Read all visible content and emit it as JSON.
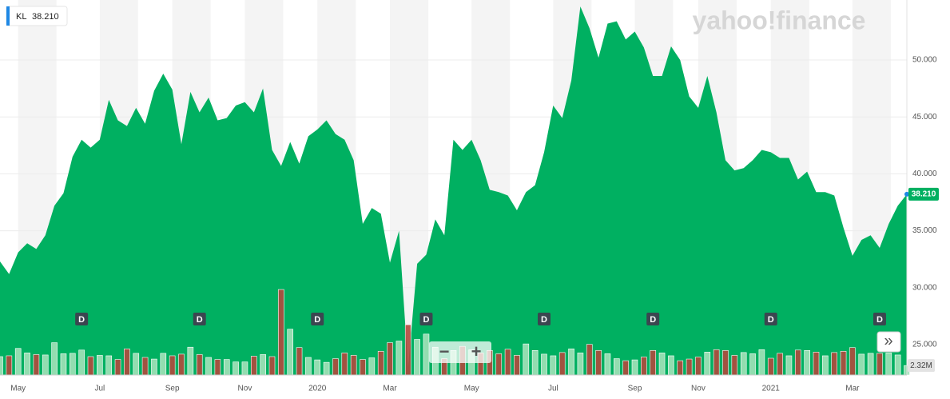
{
  "chart_data": {
    "type": "area",
    "symbol": "KL",
    "categories": [
      null,
      null,
      "May",
      null,
      null,
      null,
      null,
      null,
      null,
      null,
      null,
      "Jul",
      null,
      null,
      null,
      null,
      null,
      null,
      null,
      "Sep",
      null,
      null,
      null,
      null,
      null,
      null,
      null,
      "Nov",
      null,
      null,
      null,
      null,
      null,
      null,
      null,
      "2020",
      null,
      null,
      null,
      null,
      null,
      null,
      null,
      "Mar",
      null,
      null,
      null,
      null,
      null,
      null,
      null,
      null,
      "May",
      null,
      null,
      null,
      null,
      null,
      null,
      null,
      null,
      "Jul",
      null,
      null,
      null,
      null,
      null,
      null,
      null,
      null,
      "Sep",
      null,
      null,
      null,
      null,
      null,
      null,
      "Nov",
      null,
      null,
      null,
      null,
      null,
      null,
      null,
      "2021",
      null,
      null,
      null,
      null,
      null,
      null,
      null,
      null,
      "Mar",
      null,
      null,
      null,
      null,
      null,
      null
    ],
    "series": [
      {
        "name": "KL",
        "color": "#00b061",
        "values": [
          32.3,
          31.2,
          33.1,
          33.9,
          33.4,
          34.6,
          37.2,
          38.3,
          41.5,
          43.0,
          42.3,
          43.0,
          46.5,
          44.7,
          44.2,
          45.8,
          44.4,
          47.3,
          48.8,
          47.4,
          42.6,
          47.2,
          45.4,
          46.7,
          44.7,
          44.9,
          46.0,
          46.3,
          45.4,
          47.5,
          42.1,
          40.7,
          42.8,
          40.9,
          43.3,
          43.9,
          44.7,
          43.5,
          43.0,
          41.2,
          35.6,
          37.0,
          36.5,
          32.2,
          35.0,
          23.0,
          32.1,
          32.9,
          36.0,
          34.6,
          43.0,
          42.1,
          43.0,
          41.2,
          38.6,
          38.4,
          38.1,
          36.8,
          38.4,
          39.0,
          41.9,
          46.0,
          44.9,
          48.2,
          54.7,
          52.8,
          50.2,
          53.2,
          53.4,
          51.8,
          52.5,
          51.1,
          48.6,
          48.6,
          51.2,
          50.0,
          46.8,
          45.8,
          48.6,
          45.4,
          41.2,
          40.3,
          40.5,
          41.2,
          42.1,
          41.9,
          41.4,
          41.4,
          39.5,
          40.2,
          38.4,
          38.4,
          38.1,
          35.3,
          32.8,
          34.2,
          34.6,
          33.5,
          35.6,
          37.2,
          38.21
        ],
        "value_labels": [
          null,
          null,
          null,
          null,
          null,
          null,
          null,
          null,
          null,
          null,
          null,
          null,
          null,
          null,
          null,
          null,
          null,
          null,
          null,
          null,
          null,
          null,
          null,
          null,
          null,
          null,
          null,
          null,
          null,
          null,
          null,
          null,
          null,
          null,
          null,
          null,
          null,
          null,
          null,
          null,
          null,
          null,
          null,
          null,
          null,
          null,
          null,
          null,
          null,
          null,
          null,
          null,
          null,
          null,
          null,
          null,
          null,
          null,
          null,
          null,
          null,
          null,
          null,
          null,
          null,
          null,
          null,
          null,
          null,
          null,
          null,
          null,
          null,
          null,
          null,
          null,
          null,
          null,
          null,
          null,
          null,
          null,
          null,
          null,
          null,
          null,
          null,
          null,
          null,
          null,
          null,
          null,
          null,
          null,
          null,
          null,
          null,
          null,
          null,
          null,
          "38.210"
        ]
      }
    ],
    "volume": {
      "up_color": "#a3e2b9",
      "down_color": "#b2493d",
      "vlim": [
        0,
        21.5
      ],
      "values": [
        4.5,
        4.7,
        6.5,
        5.4,
        5.0,
        4.9,
        7.9,
        5.2,
        5.3,
        6.1,
        4.5,
        4.8,
        4.7,
        3.8,
        6.4,
        5.3,
        4.3,
        3.9,
        5.3,
        4.7,
        5.1,
        6.8,
        5.0,
        4.3,
        3.8,
        3.8,
        3.2,
        3.2,
        4.6,
        5.0,
        4.5,
        20.9,
        11.2,
        6.7,
        4.3,
        3.7,
        3.1,
        4.0,
        5.4,
        4.8,
        3.8,
        4.2,
        5.8,
        7.9,
        8.3,
        12.3,
        8.7,
        10.0,
        6.8,
        4.0,
        6.0,
        7.0,
        6.2,
        5.4,
        6.0,
        5.2,
        6.3,
        4.8,
        7.6,
        6.0,
        5.1,
        4.7,
        5.5,
        6.4,
        5.4,
        7.5,
        6.0,
        5.2,
        4.0,
        3.5,
        3.7,
        4.4,
        6.0,
        5.4,
        4.7,
        3.5,
        3.9,
        4.4,
        5.6,
        6.2,
        6.0,
        4.8,
        5.5,
        5.2,
        6.2,
        4.1,
        5.3,
        4.7,
        6.1,
        6.0,
        5.6,
        4.7,
        5.5,
        5.8,
        6.7,
        5.1,
        5.3,
        5.3,
        5.4,
        4.9,
        2.32
      ],
      "value_labels": [
        null,
        null,
        null,
        null,
        null,
        null,
        null,
        null,
        null,
        null,
        null,
        null,
        null,
        null,
        null,
        null,
        null,
        null,
        null,
        null,
        null,
        null,
        null,
        null,
        null,
        null,
        null,
        null,
        null,
        null,
        null,
        null,
        null,
        null,
        null,
        null,
        null,
        null,
        null,
        null,
        null,
        null,
        null,
        null,
        null,
        null,
        null,
        null,
        null,
        null,
        null,
        null,
        null,
        null,
        null,
        null,
        null,
        null,
        null,
        null,
        null,
        null,
        null,
        null,
        null,
        null,
        null,
        null,
        null,
        null,
        null,
        null,
        null,
        null,
        null,
        null,
        null,
        null,
        null,
        null,
        null,
        null,
        null,
        null,
        null,
        null,
        null,
        null,
        null,
        null,
        null,
        null,
        null,
        null,
        null,
        null,
        null,
        null,
        null,
        null,
        "2.32M"
      ]
    },
    "dividends": [
      null,
      null,
      null,
      null,
      null,
      null,
      null,
      null,
      null,
      "D",
      null,
      null,
      null,
      null,
      null,
      null,
      null,
      null,
      null,
      null,
      null,
      null,
      "D",
      null,
      null,
      null,
      null,
      null,
      null,
      null,
      null,
      null,
      null,
      null,
      null,
      "D",
      null,
      null,
      null,
      null,
      null,
      null,
      null,
      null,
      null,
      null,
      null,
      "D",
      null,
      null,
      null,
      null,
      null,
      null,
      null,
      null,
      null,
      null,
      null,
      null,
      "D",
      null,
      null,
      null,
      null,
      null,
      null,
      null,
      null,
      null,
      null,
      null,
      "D",
      null,
      null,
      null,
      null,
      null,
      null,
      null,
      null,
      null,
      null,
      null,
      null,
      "D",
      null,
      null,
      null,
      null,
      null,
      null,
      null,
      null,
      null,
      null,
      null,
      "D",
      null,
      null,
      null
    ],
    "ylim": [
      22.33,
      55.27
    ],
    "yticks": [
      {
        "value": 25,
        "label": "25.000"
      },
      {
        "value": 30,
        "label": "30.000"
      },
      {
        "value": 35,
        "label": "35.000"
      },
      {
        "value": 40,
        "label": "40.000"
      },
      {
        "value": 45,
        "label": "45.000"
      },
      {
        "value": 50,
        "label": "50.000"
      }
    ],
    "grid": true
  },
  "ui": {
    "logo": "yahoo!finance",
    "zoom_out": "−",
    "zoom_in": "+",
    "scroll": "»"
  }
}
